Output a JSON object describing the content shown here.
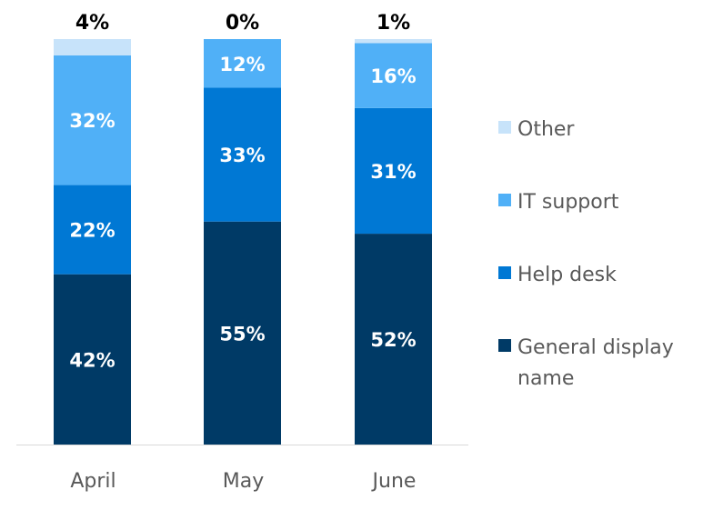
{
  "chart_data": {
    "type": "bar",
    "stacked": true,
    "normalized": true,
    "categories": [
      "April",
      "May",
      "June"
    ],
    "series": [
      {
        "name": "General display name",
        "color": "#003A66",
        "values": [
          42,
          55,
          52
        ],
        "labels": [
          "42%",
          "55%",
          "52%"
        ]
      },
      {
        "name": "Help desk",
        "color": "#0078D4",
        "values": [
          22,
          33,
          31
        ],
        "labels": [
          "22%",
          "33%",
          "31%"
        ]
      },
      {
        "name": "IT support",
        "color": "#50B0F7",
        "values": [
          32,
          12,
          16
        ],
        "labels": [
          "32%",
          "12%",
          "16%"
        ]
      },
      {
        "name": "Other",
        "color": "#C7E3FA",
        "values": [
          4,
          0,
          1
        ],
        "labels": [
          "4%",
          "0%",
          "1%"
        ]
      }
    ],
    "ylim": [
      0,
      100
    ],
    "legend_position": "right",
    "grid": false
  }
}
